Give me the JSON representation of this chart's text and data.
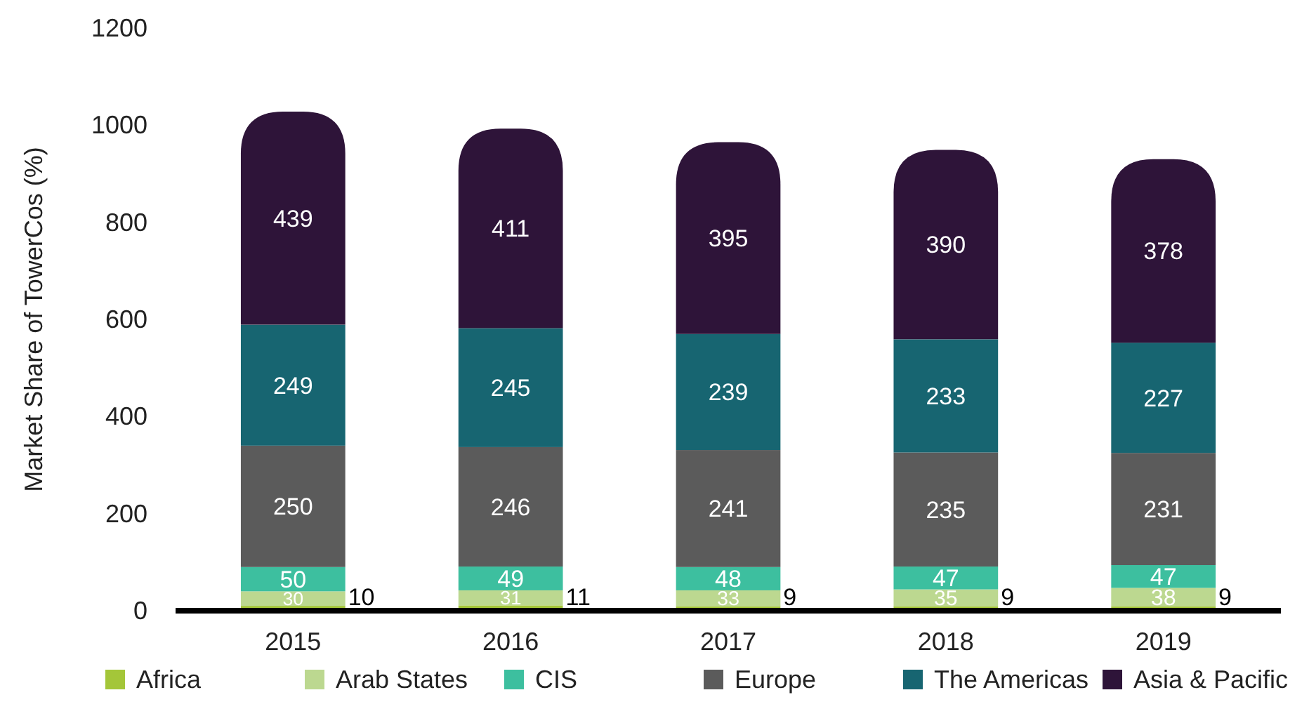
{
  "chart_data": {
    "type": "bar",
    "stacked": true,
    "ylabel": "Market Share of TowerCos (%)",
    "categories": [
      "2015",
      "2016",
      "2017",
      "2018",
      "2019"
    ],
    "series": [
      {
        "name": "Africa",
        "color": "#a4c639",
        "values": [
          10,
          11,
          9,
          9,
          9
        ]
      },
      {
        "name": "Arab States",
        "color": "#bcd890",
        "values": [
          30,
          31,
          33,
          35,
          38
        ]
      },
      {
        "name": "CIS",
        "color": "#3dbf9f",
        "values": [
          50,
          49,
          48,
          47,
          47
        ]
      },
      {
        "name": "Europe",
        "color": "#5b5b5b",
        "values": [
          250,
          246,
          241,
          235,
          231
        ]
      },
      {
        "name": "The Americas",
        "color": "#176571",
        "values": [
          249,
          245,
          239,
          233,
          227
        ]
      },
      {
        "name": "Asia & Pacific",
        "color": "#2e1439",
        "values": [
          439,
          411,
          395,
          390,
          378
        ]
      }
    ],
    "ylim": [
      0,
      1200
    ],
    "yticks": [
      0,
      200,
      400,
      600,
      800,
      1000,
      1200
    ],
    "grid": false,
    "legend": "bottom",
    "data_labels": true
  }
}
